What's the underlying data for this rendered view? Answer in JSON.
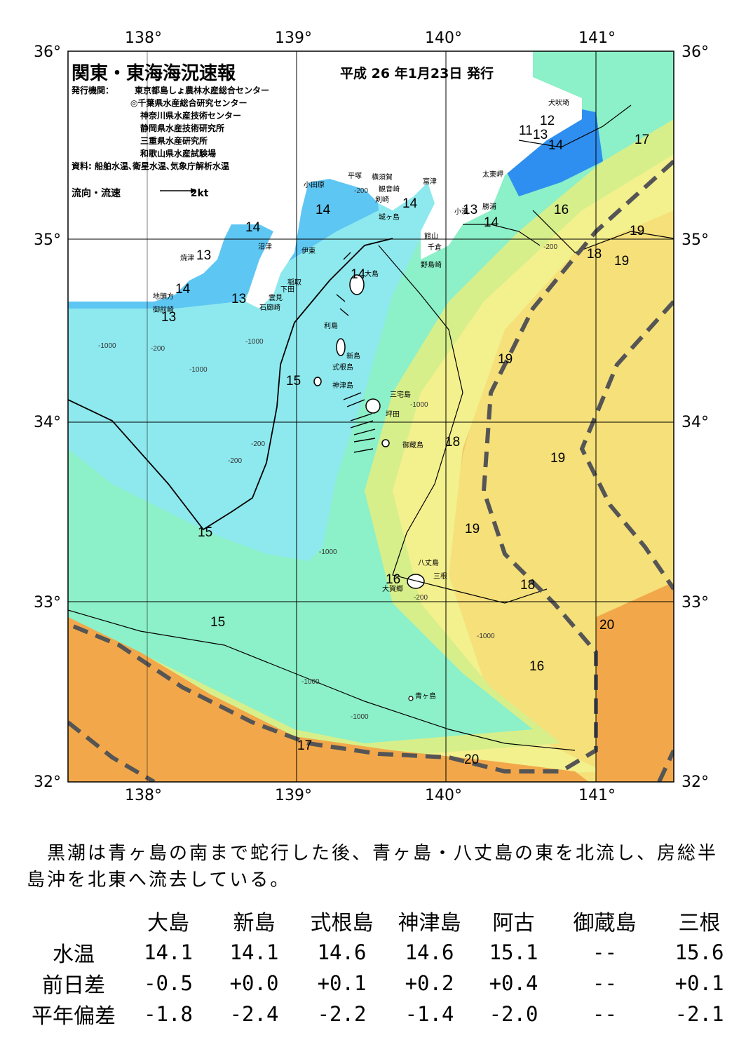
{
  "header": {
    "title": "関東・東海海況速報",
    "date": "平成 26 年1月23日 発行",
    "issuer_label": "発行機関：",
    "issuers": [
      "東京都島しょ農林水産総合センター",
      "◎千葉県水産総合研究センター",
      "神奈川県水産技術センター",
      "静岡県水産技術研究所",
      "三重県水産研究所",
      "和歌山県水産試験場"
    ],
    "source": "資料: 船舶水温､衛星水温､気象庁解析水温",
    "flow_legend_label": "流向・流速",
    "flow_legend_value": "2kt"
  },
  "axes": {
    "lon_ticks": [
      "138°",
      "139°",
      "140°",
      "141°"
    ],
    "lat_ticks": [
      "36°",
      "35°",
      "34°",
      "33°",
      "32°"
    ]
  },
  "map": {
    "place_labels": [
      "犬吠埼",
      "太東岬",
      "勝浦",
      "小湊",
      "富津",
      "館山",
      "千倉",
      "野島崎",
      "横須賀",
      "平塚",
      "小田原",
      "観音崎",
      "剣崎",
      "城ヶ島",
      "沼津",
      "伊東",
      "焼津",
      "稲取",
      "下田",
      "雲見",
      "石廊崎",
      "地頭方",
      "御前崎",
      "大島",
      "利島",
      "新島",
      "式根島",
      "神津島",
      "三宅島",
      "坪田",
      "御蔵島",
      "八丈島",
      "三根",
      "大賀郷",
      "青ヶ島"
    ],
    "isotherm_labels": [
      "11",
      "12",
      "13",
      "14",
      "17",
      "16",
      "19",
      "18",
      "19",
      "14",
      "14",
      "14",
      "13",
      "13",
      "14",
      "14",
      "13",
      "13",
      "14",
      "15",
      "15",
      "19",
      "18",
      "19",
      "19",
      "15",
      "16",
      "18",
      "20",
      "16",
      "17",
      "20",
      "19",
      "11",
      "13",
      "13"
    ],
    "depth_labels": [
      "-200",
      "-200",
      "-1000",
      "-1000",
      "-1000",
      "-200",
      "-1000",
      "-1000",
      "-200",
      "-1000",
      "-1000",
      "-200",
      "-1000",
      "-1000",
      "-200",
      "-1000",
      "-200"
    ],
    "colors": {
      "land": "#ffffff",
      "sst_12": "#1a66e6",
      "sst_13": "#2e8ff0",
      "sst_14": "#5ec6f3",
      "sst_15": "#8ee9ee",
      "sst_16": "#8cf0c8",
      "sst_16b": "#6ed39a",
      "sst_17": "#d7ef8a",
      "sst_18": "#f3f08e",
      "sst_19": "#f5e07a",
      "sst_19b": "#f2c86a",
      "sst_20": "#f2a84a",
      "kuroshio_axis": "#555555",
      "grid": "#000000"
    }
  },
  "comment": "　黒潮は青ヶ島の南まで蛇行した後、青ヶ島・八丈島の東を北流し、房総半島沖を北東へ流去している。",
  "table": {
    "columns": [
      "大島",
      "新島",
      "式根島",
      "神津島",
      "阿古",
      "御蔵島",
      "三根"
    ],
    "rows": [
      {
        "label": "水温",
        "values": [
          "14.1",
          "14.1",
          "14.6",
          "14.6",
          "15.1",
          "--",
          "15.6"
        ]
      },
      {
        "label": "前日差",
        "values": [
          "-0.5",
          "+0.0",
          "+0.1",
          "+0.2",
          "+0.4",
          "--",
          "+0.1"
        ]
      },
      {
        "label": "平年偏差",
        "values": [
          "-1.8",
          "-2.4",
          "-2.2",
          "-1.4",
          "-2.0",
          "--",
          "-2.1"
        ]
      }
    ]
  }
}
